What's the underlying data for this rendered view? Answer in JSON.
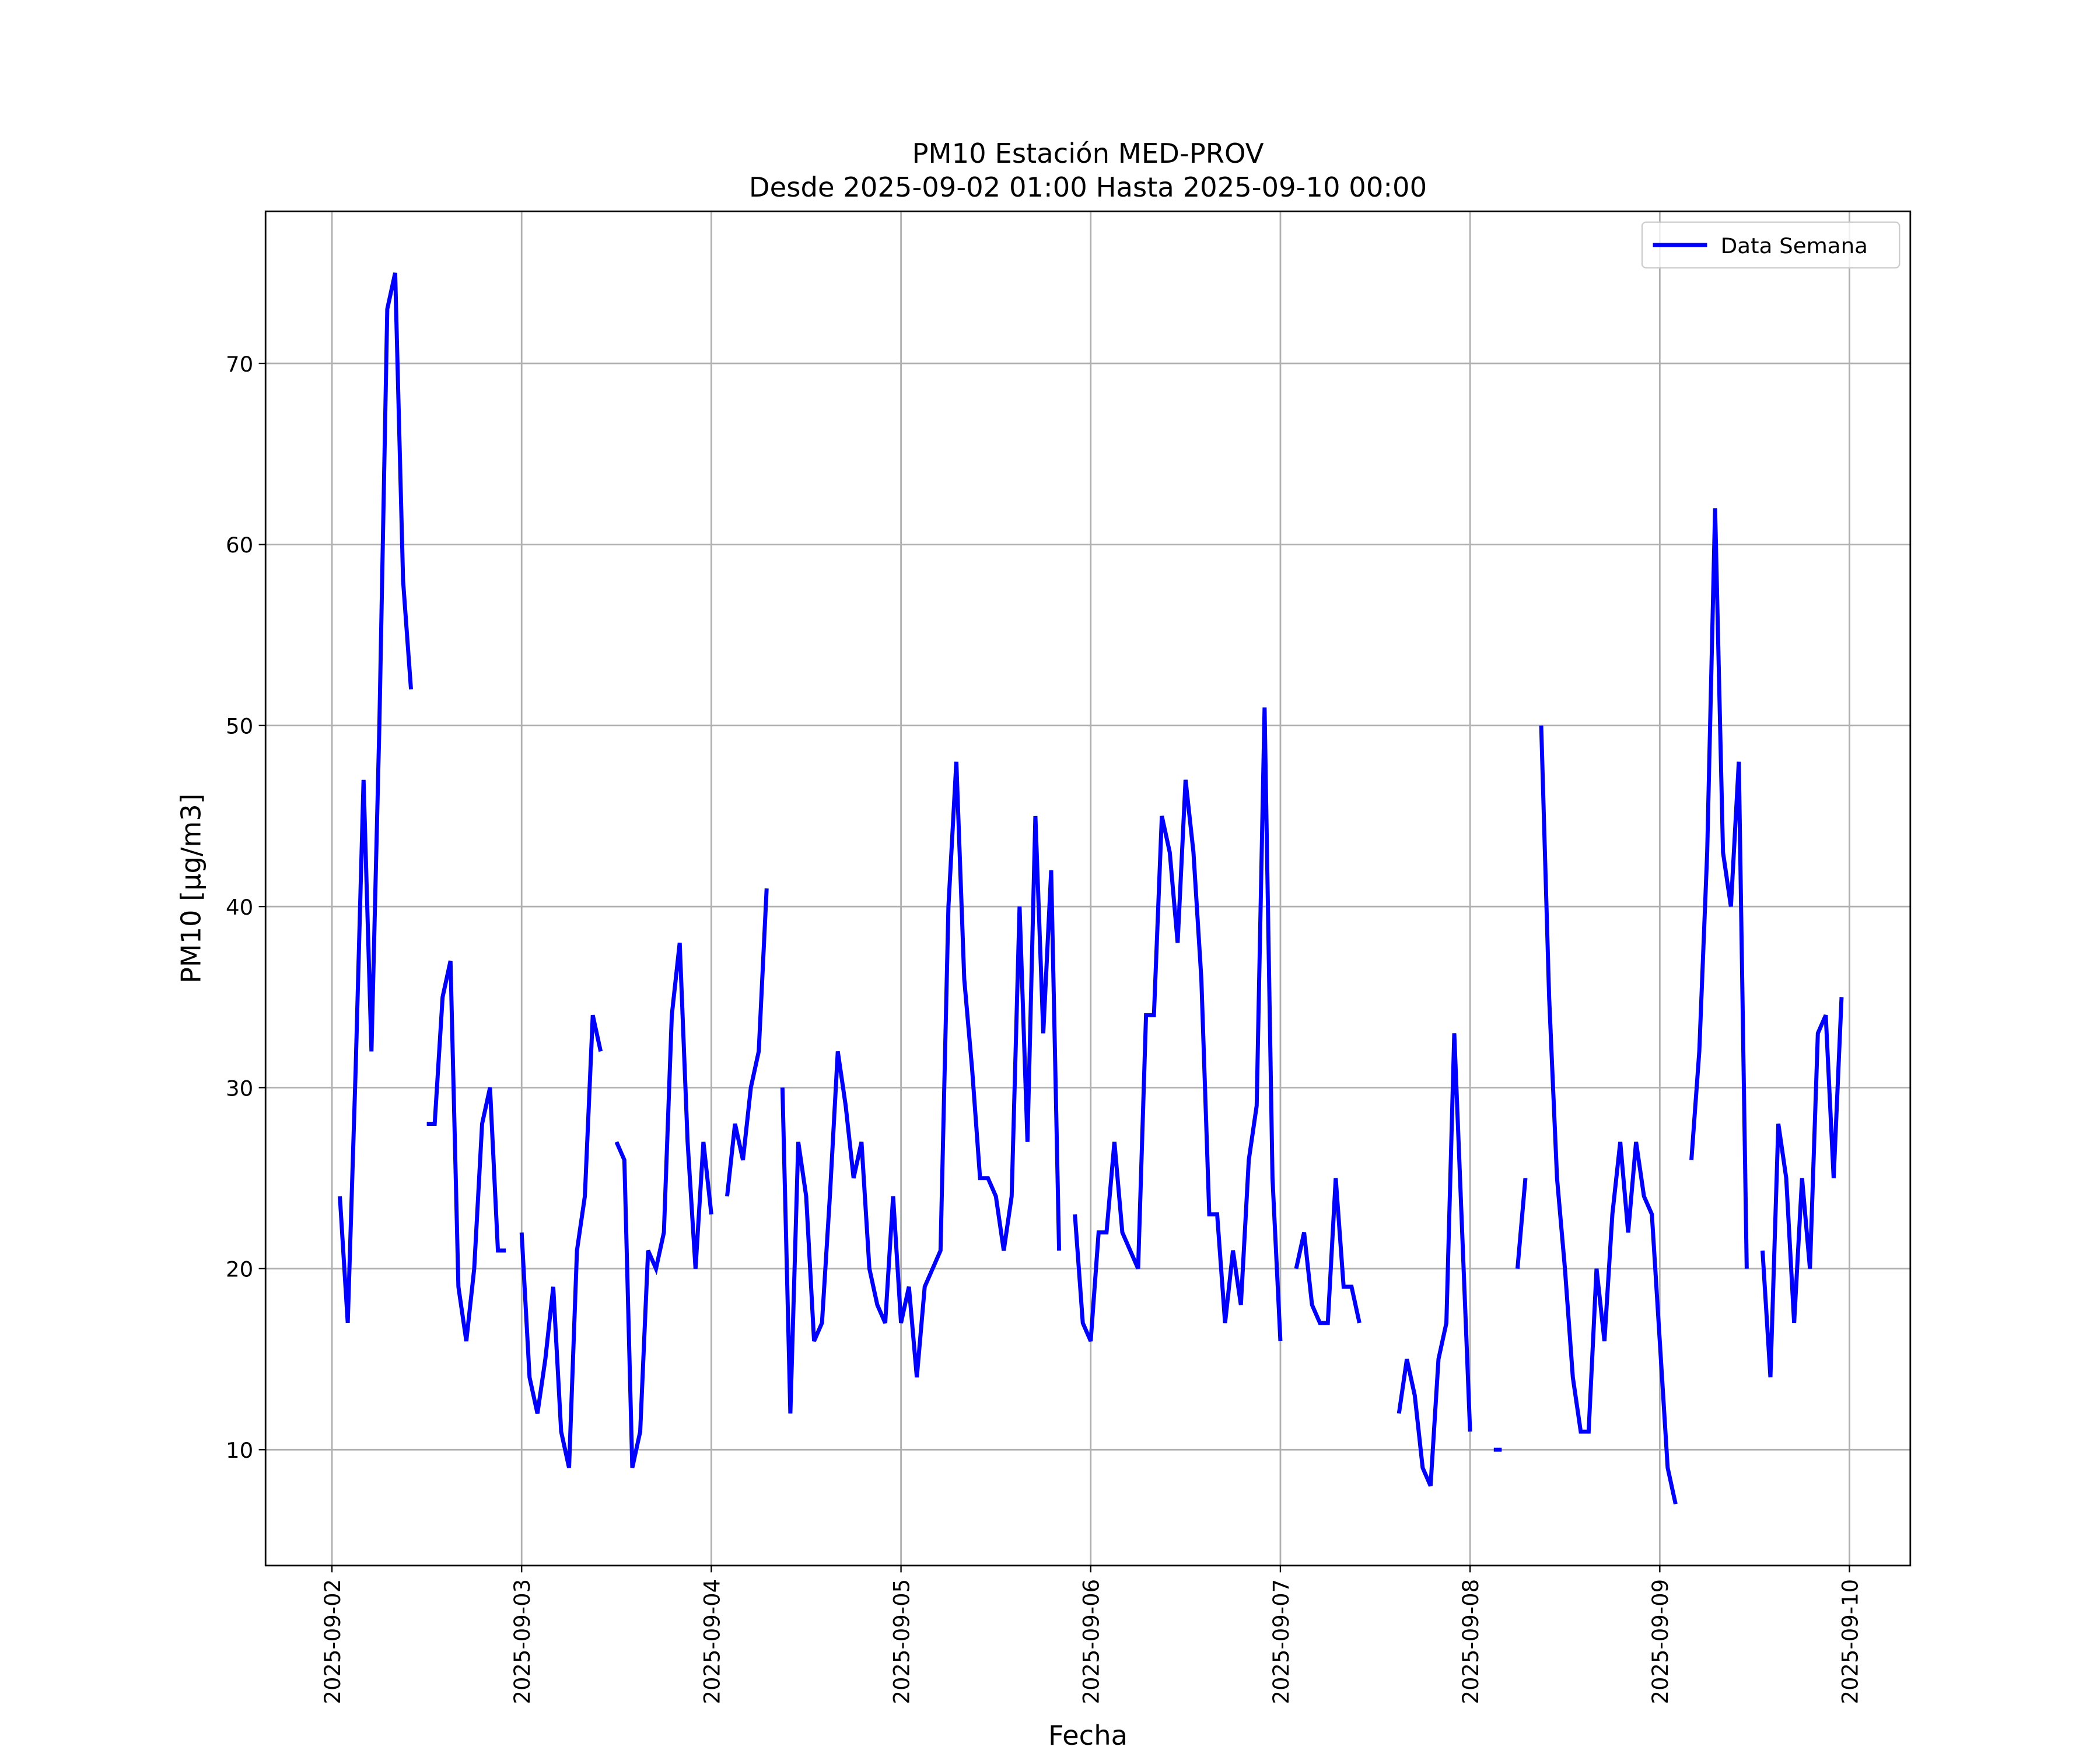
{
  "chart_data": {
    "type": "line",
    "title": "PM10 Estación MED-PROV",
    "subtitle": "Desde 2025-09-02 01:00 Hasta 2025-09-10 00:00",
    "xlabel": "Fecha",
    "ylabel": "PM10 [μg/m3]",
    "x": [
      "2025-09-02 01:00",
      "2025-09-02 02:00",
      "2025-09-02 03:00",
      "2025-09-02 04:00",
      "2025-09-02 05:00",
      "2025-09-02 06:00",
      "2025-09-02 07:00",
      "2025-09-02 08:00",
      "2025-09-02 09:00",
      "2025-09-02 10:00",
      "2025-09-02 11:00",
      "2025-09-02 12:00",
      "2025-09-02 13:00",
      "2025-09-02 14:00",
      "2025-09-02 15:00",
      "2025-09-02 16:00",
      "2025-09-02 17:00",
      "2025-09-02 18:00",
      "2025-09-02 19:00",
      "2025-09-02 20:00",
      "2025-09-02 21:00",
      "2025-09-02 22:00",
      "2025-09-02 23:00",
      "2025-09-03 00:00",
      "2025-09-03 01:00",
      "2025-09-03 02:00",
      "2025-09-03 03:00",
      "2025-09-03 04:00",
      "2025-09-03 05:00",
      "2025-09-03 06:00",
      "2025-09-03 07:00",
      "2025-09-03 08:00",
      "2025-09-03 09:00",
      "2025-09-03 10:00",
      "2025-09-03 11:00",
      "2025-09-03 12:00",
      "2025-09-03 13:00",
      "2025-09-03 14:00",
      "2025-09-03 15:00",
      "2025-09-03 16:00",
      "2025-09-03 17:00",
      "2025-09-03 18:00",
      "2025-09-03 19:00",
      "2025-09-03 20:00",
      "2025-09-03 21:00",
      "2025-09-03 22:00",
      "2025-09-03 23:00",
      "2025-09-04 00:00",
      "2025-09-04 01:00",
      "2025-09-04 02:00",
      "2025-09-04 03:00",
      "2025-09-04 04:00",
      "2025-09-04 05:00",
      "2025-09-04 06:00",
      "2025-09-04 07:00",
      "2025-09-04 08:00",
      "2025-09-04 09:00",
      "2025-09-04 10:00",
      "2025-09-04 11:00",
      "2025-09-04 12:00",
      "2025-09-04 13:00",
      "2025-09-04 14:00",
      "2025-09-04 15:00",
      "2025-09-04 16:00",
      "2025-09-04 17:00",
      "2025-09-04 18:00",
      "2025-09-04 19:00",
      "2025-09-04 20:00",
      "2025-09-04 21:00",
      "2025-09-04 22:00",
      "2025-09-04 23:00",
      "2025-09-05 00:00",
      "2025-09-05 01:00",
      "2025-09-05 02:00",
      "2025-09-05 03:00",
      "2025-09-05 04:00",
      "2025-09-05 05:00",
      "2025-09-05 06:00",
      "2025-09-05 07:00",
      "2025-09-05 08:00",
      "2025-09-05 09:00",
      "2025-09-05 10:00",
      "2025-09-05 11:00",
      "2025-09-05 12:00",
      "2025-09-05 13:00",
      "2025-09-05 14:00",
      "2025-09-05 15:00",
      "2025-09-05 16:00",
      "2025-09-05 17:00",
      "2025-09-05 18:00",
      "2025-09-05 19:00",
      "2025-09-05 20:00",
      "2025-09-05 21:00",
      "2025-09-05 22:00",
      "2025-09-05 23:00",
      "2025-09-06 00:00",
      "2025-09-06 01:00",
      "2025-09-06 02:00",
      "2025-09-06 03:00",
      "2025-09-06 04:00",
      "2025-09-06 05:00",
      "2025-09-06 06:00",
      "2025-09-06 07:00",
      "2025-09-06 08:00",
      "2025-09-06 09:00",
      "2025-09-06 10:00",
      "2025-09-06 11:00",
      "2025-09-06 12:00",
      "2025-09-06 13:00",
      "2025-09-06 14:00",
      "2025-09-06 15:00",
      "2025-09-06 16:00",
      "2025-09-06 17:00",
      "2025-09-06 18:00",
      "2025-09-06 19:00",
      "2025-09-06 20:00",
      "2025-09-06 21:00",
      "2025-09-06 22:00",
      "2025-09-06 23:00",
      "2025-09-07 00:00",
      "2025-09-07 01:00",
      "2025-09-07 02:00",
      "2025-09-07 03:00",
      "2025-09-07 04:00",
      "2025-09-07 05:00",
      "2025-09-07 06:00",
      "2025-09-07 07:00",
      "2025-09-07 08:00",
      "2025-09-07 09:00",
      "2025-09-07 10:00",
      "2025-09-07 11:00",
      "2025-09-07 12:00",
      "2025-09-07 13:00",
      "2025-09-07 14:00",
      "2025-09-07 15:00",
      "2025-09-07 16:00",
      "2025-09-07 17:00",
      "2025-09-07 18:00",
      "2025-09-07 19:00",
      "2025-09-07 20:00",
      "2025-09-07 21:00",
      "2025-09-07 22:00",
      "2025-09-07 23:00",
      "2025-09-08 00:00",
      "2025-09-08 01:00",
      "2025-09-08 02:00",
      "2025-09-08 03:00",
      "2025-09-08 04:00",
      "2025-09-08 05:00",
      "2025-09-08 06:00",
      "2025-09-08 07:00",
      "2025-09-08 08:00",
      "2025-09-08 09:00",
      "2025-09-08 10:00",
      "2025-09-08 11:00",
      "2025-09-08 12:00",
      "2025-09-08 13:00",
      "2025-09-08 14:00",
      "2025-09-08 15:00",
      "2025-09-08 16:00",
      "2025-09-08 17:00",
      "2025-09-08 18:00",
      "2025-09-08 19:00",
      "2025-09-08 20:00",
      "2025-09-08 21:00",
      "2025-09-08 22:00",
      "2025-09-08 23:00",
      "2025-09-09 00:00",
      "2025-09-09 01:00",
      "2025-09-09 02:00",
      "2025-09-09 03:00",
      "2025-09-09 04:00",
      "2025-09-09 05:00",
      "2025-09-09 06:00",
      "2025-09-09 07:00",
      "2025-09-09 08:00",
      "2025-09-09 09:00",
      "2025-09-09 10:00",
      "2025-09-09 11:00",
      "2025-09-09 12:00",
      "2025-09-09 13:00",
      "2025-09-09 14:00",
      "2025-09-09 15:00",
      "2025-09-09 16:00",
      "2025-09-09 17:00",
      "2025-09-09 18:00",
      "2025-09-09 19:00",
      "2025-09-09 20:00",
      "2025-09-09 21:00",
      "2025-09-09 22:00",
      "2025-09-09 23:00",
      "2025-09-10 00:00"
    ],
    "series": [
      {
        "name": "Data Semana",
        "color": "#0000ff",
        "values": [
          24,
          17,
          31,
          47,
          32,
          50,
          73,
          75,
          58,
          52,
          null,
          28,
          28,
          35,
          37,
          19,
          16,
          20,
          28,
          30,
          21,
          21,
          null,
          22,
          14,
          12,
          15,
          19,
          11,
          9,
          21,
          24,
          34,
          32,
          null,
          27,
          26,
          9,
          11,
          21,
          20,
          22,
          34,
          38,
          27,
          20,
          27,
          23,
          null,
          24,
          28,
          26,
          30,
          32,
          41,
          null,
          30,
          12,
          27,
          24,
          16,
          17,
          24,
          32,
          29,
          25,
          27,
          20,
          18,
          17,
          24,
          17,
          19,
          14,
          19,
          20,
          21,
          40,
          48,
          36,
          31,
          25,
          25,
          24,
          21,
          24,
          40,
          27,
          45,
          33,
          42,
          21,
          null,
          23,
          17,
          16,
          22,
          22,
          27,
          22,
          21,
          20,
          34,
          34,
          45,
          43,
          38,
          47,
          43,
          36,
          23,
          23,
          17,
          21,
          18,
          26,
          29,
          51,
          25,
          16,
          null,
          20,
          22,
          18,
          17,
          17,
          25,
          19,
          19,
          17,
          null,
          null,
          null,
          null,
          12,
          15,
          13,
          9,
          8,
          15,
          17,
          33,
          22,
          11,
          null,
          null,
          10,
          10,
          null,
          20,
          25,
          null,
          50,
          35,
          25,
          20,
          14,
          11,
          11,
          20,
          16,
          23,
          27,
          22,
          27,
          24,
          23,
          16,
          9,
          7,
          null,
          26,
          32,
          43,
          62,
          43,
          40,
          48,
          20,
          null,
          21,
          14,
          28,
          25,
          17,
          25,
          20,
          33,
          34,
          25,
          35,
          null
        ]
      }
    ],
    "xlim": [
      "2025-09-01 15:36",
      "2025-09-10 07:42"
    ],
    "xticks": [
      "2025-09-02",
      "2025-09-03",
      "2025-09-04",
      "2025-09-05",
      "2025-09-06",
      "2025-09-07",
      "2025-09-08",
      "2025-09-09",
      "2025-09-10"
    ],
    "ylim": [
      3.6,
      78.4
    ],
    "yticks": [
      10,
      20,
      30,
      40,
      50,
      60,
      70
    ],
    "grid": true,
    "legend": "upper right"
  }
}
